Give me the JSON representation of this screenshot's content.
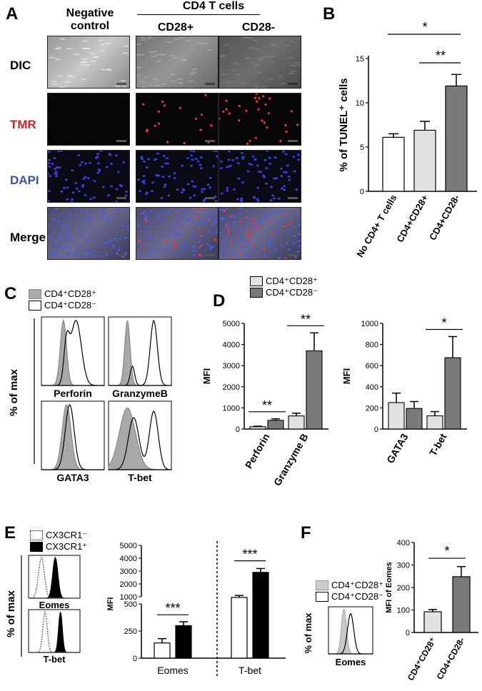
{
  "panels": {
    "A": "A",
    "B": "B",
    "C": "C",
    "D": "D",
    "E": "E",
    "F": "F"
  },
  "panelA": {
    "group_header": "CD4 T cells",
    "columns": [
      "Negative control",
      "CD28+",
      "CD28-"
    ],
    "rows": [
      {
        "label": "DIC",
        "color": "#000000"
      },
      {
        "label": "TMR",
        "color": "#d42020"
      },
      {
        "label": "DAPI",
        "color": "#3a4fb8"
      },
      {
        "label": "Merge",
        "color": "#000000"
      }
    ]
  },
  "chart_data": [
    {
      "id": "B",
      "type": "bar",
      "ylabel": "% of TUNEL⁺ cells",
      "categories": [
        "No CD4+ T cells",
        "CD4+CD28+",
        "CD4+CD28-"
      ],
      "values": [
        6.1,
        6.9,
        11.9
      ],
      "errors": [
        0.4,
        1.0,
        1.3
      ],
      "colors": [
        "#ffffff",
        "#e2e2e2",
        "#7a7a7a"
      ],
      "ylim": [
        0,
        15
      ],
      "yticks": [
        0,
        5,
        10,
        15
      ],
      "significance": [
        {
          "from": 1,
          "to": 2,
          "label": "**"
        },
        {
          "from": 0,
          "to": 2,
          "label": "*"
        }
      ]
    },
    {
      "id": "C",
      "type": "histogram",
      "ylabel": "% of max",
      "legend": [
        "CD4⁺CD28⁺",
        "CD4⁺CD28⁻"
      ],
      "plots": [
        "Perforin",
        "GranzymeB",
        "GATA3",
        "T-bet"
      ]
    },
    {
      "id": "D1",
      "type": "bar",
      "ylabel": "MFI",
      "categories": [
        "Perforin",
        "Granzyme B"
      ],
      "series": [
        {
          "name": "CD4⁺CD28⁺",
          "values": [
            110,
            620
          ],
          "errors": [
            25,
            130
          ],
          "color": "#e2e2e2"
        },
        {
          "name": "CD4⁺CD28⁻",
          "values": [
            410,
            3700
          ],
          "errors": [
            70,
            850
          ],
          "color": "#7a7a7a"
        }
      ],
      "ylim": [
        0,
        5000
      ],
      "yticks": [
        0,
        1000,
        2000,
        3000,
        4000,
        5000
      ],
      "significance": [
        {
          "category": 0,
          "label": "**"
        },
        {
          "category": 1,
          "label": "**"
        }
      ]
    },
    {
      "id": "D2",
      "type": "bar",
      "ylabel": "MFI",
      "categories": [
        "GATA3",
        "T-bet"
      ],
      "series": [
        {
          "name": "CD4⁺CD28⁺",
          "values": [
            250,
            125
          ],
          "errors": [
            90,
            40
          ],
          "color": "#e2e2e2"
        },
        {
          "name": "CD4⁺CD28⁻",
          "values": [
            195,
            675
          ],
          "errors": [
            65,
            200
          ],
          "color": "#7a7a7a"
        }
      ],
      "ylim": [
        0,
        1000
      ],
      "yticks": [
        0,
        200,
        400,
        600,
        800,
        1000
      ],
      "significance": [
        {
          "category": 1,
          "label": "*"
        }
      ]
    },
    {
      "id": "E_hist",
      "type": "histogram",
      "ylabel": "% of max",
      "legend": [
        "CX3CR1⁻",
        "CX3CR1⁺"
      ],
      "plots": [
        "Eomes",
        "T-bet"
      ]
    },
    {
      "id": "E_bar",
      "type": "bar",
      "ylabel": "MFI",
      "categories": [
        "Eomes",
        "T-bet"
      ],
      "series": [
        {
          "name": "CX3CR1⁻",
          "values": [
            140,
            950
          ],
          "errors": [
            40,
            150
          ],
          "color": "#ffffff"
        },
        {
          "name": "CX3CR1⁺",
          "values": [
            300,
            2900
          ],
          "errors": [
            35,
            300
          ],
          "color": "#000000"
        }
      ],
      "yticks_lower": [
        0,
        250,
        500
      ],
      "yticks_upper": [
        1000,
        2000,
        3000,
        4000,
        5000
      ],
      "significance": [
        {
          "category": 0,
          "label": "***"
        },
        {
          "category": 1,
          "label": "***"
        }
      ]
    },
    {
      "id": "F_hist",
      "type": "histogram",
      "ylabel": "% of max",
      "legend": [
        "CD4⁺CD28⁺",
        "CD4⁺CD28⁻"
      ],
      "plots": [
        "Eomes"
      ]
    },
    {
      "id": "F_bar",
      "type": "bar",
      "ylabel": "MFI of Eomes",
      "categories": [
        "CD4⁺CD28⁺",
        "CD4+CD28-"
      ],
      "values": [
        92,
        248
      ],
      "errors": [
        10,
        45
      ],
      "colors": [
        "#e2e2e2",
        "#7a7a7a"
      ],
      "ylim": [
        0,
        400
      ],
      "yticks": [
        0,
        100,
        200,
        300,
        400
      ],
      "significance": [
        {
          "from": 0,
          "to": 1,
          "label": "*"
        }
      ]
    }
  ]
}
